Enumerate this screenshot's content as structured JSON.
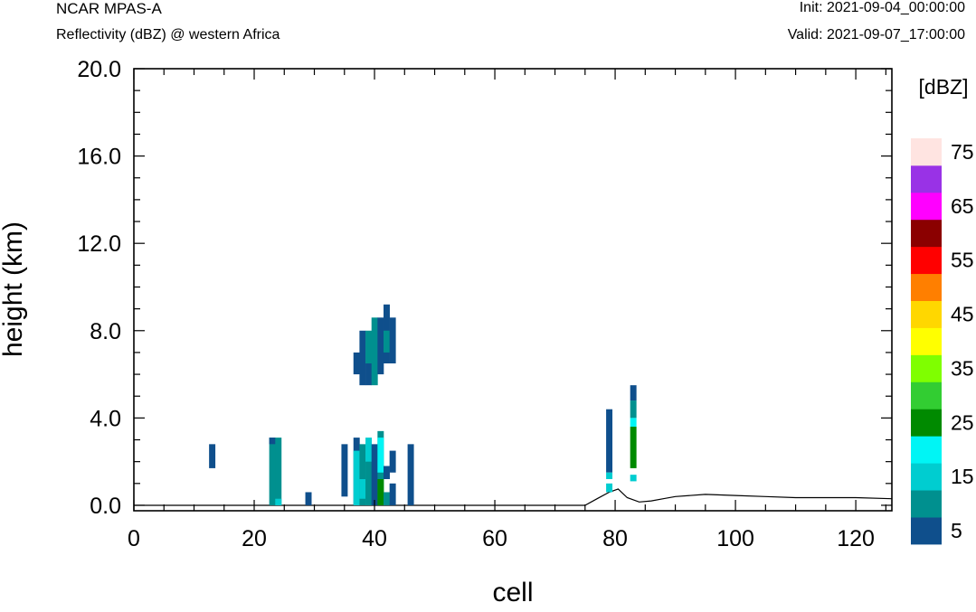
{
  "header": {
    "model": "NCAR MPAS-A",
    "field": "Reflectivity (dBZ) @ western Africa",
    "init": "Init: 2021-09-04_00:00:00",
    "valid": "Valid: 2021-09-07_17:00:00"
  },
  "chart_data": {
    "type": "heatmap",
    "title": "Reflectivity (dBZ) @ western Africa",
    "xlabel": "cell",
    "ylabel": "height (km)",
    "xlim": [
      0,
      126
    ],
    "ylim": [
      -0.25,
      20.0
    ],
    "x_ticks": [
      0,
      20,
      40,
      60,
      80,
      100,
      120
    ],
    "y_ticks": [
      0.0,
      4.0,
      8.0,
      12.0,
      16.0,
      20.0
    ],
    "y_tick_labels": [
      "0.0",
      "4.0",
      "8.0",
      "12.0",
      "16.0",
      "20.0"
    ],
    "colorbar": {
      "unit": "[dBZ]",
      "levels": [
        5,
        10,
        15,
        20,
        25,
        30,
        35,
        40,
        45,
        50,
        55,
        60,
        65,
        70,
        75
      ],
      "labels": [
        "5",
        "15",
        "25",
        "35",
        "45",
        "55",
        "65",
        "75"
      ],
      "colors": [
        "#0f4f8c",
        "#00908f",
        "#00cdd0",
        "#00f5f5",
        "#008a00",
        "#32cd32",
        "#7fff00",
        "#ffff00",
        "#ffd700",
        "#ff7f00",
        "#ff0000",
        "#8b0000",
        "#ff00ff",
        "#9932e6",
        "#ffe4e1"
      ]
    },
    "cells": [
      {
        "x": 13,
        "y0": 1.7,
        "y1": 2.8,
        "dbz": 5
      },
      {
        "x": 23,
        "y0": 0.0,
        "y1": 3.1,
        "dbz": 10
      },
      {
        "x": 23,
        "y0": 2.8,
        "y1": 3.1,
        "dbz": 5
      },
      {
        "x": 24,
        "y0": 0.0,
        "y1": 3.1,
        "dbz": 10
      },
      {
        "x": 24,
        "y0": 0.0,
        "y1": 0.3,
        "dbz": 15
      },
      {
        "x": 29,
        "y0": 0.0,
        "y1": 0.6,
        "dbz": 5
      },
      {
        "x": 35,
        "y0": 0.4,
        "y1": 2.8,
        "dbz": 5
      },
      {
        "x": 37,
        "y0": 0.0,
        "y1": 3.1,
        "dbz": 5
      },
      {
        "x": 37,
        "y0": 0.0,
        "y1": 2.5,
        "dbz": 15
      },
      {
        "x": 38,
        "y0": 0.0,
        "y1": 2.8,
        "dbz": 10
      },
      {
        "x": 38,
        "y0": 0.3,
        "y1": 1.2,
        "dbz": 15
      },
      {
        "x": 39,
        "y0": 0.0,
        "y1": 3.1,
        "dbz": 15
      },
      {
        "x": 39,
        "y0": 0.0,
        "y1": 2.0,
        "dbz": 10
      },
      {
        "x": 40,
        "y0": 0.0,
        "y1": 2.8,
        "dbz": 5
      },
      {
        "x": 41,
        "y0": 0.0,
        "y1": 3.4,
        "dbz": 10
      },
      {
        "x": 41,
        "y0": 1.5,
        "y1": 3.1,
        "dbz": 20
      },
      {
        "x": 41,
        "y0": 0.0,
        "y1": 1.2,
        "dbz": 25
      },
      {
        "x": 42,
        "y0": 1.2,
        "y1": 1.8,
        "dbz": 5
      },
      {
        "x": 42,
        "y0": 0.0,
        "y1": 0.6,
        "dbz": 10
      },
      {
        "x": 43,
        "y0": 0.0,
        "y1": 1.0,
        "dbz": 5
      },
      {
        "x": 43,
        "y0": 1.5,
        "y1": 2.5,
        "dbz": 5
      },
      {
        "x": 46,
        "y0": 0.0,
        "y1": 2.8,
        "dbz": 5
      },
      {
        "x": 37,
        "y0": 6.0,
        "y1": 7.0,
        "dbz": 5
      },
      {
        "x": 38,
        "y0": 5.5,
        "y1": 8.0,
        "dbz": 5
      },
      {
        "x": 39,
        "y0": 6.5,
        "y1": 8.0,
        "dbz": 10
      },
      {
        "x": 39,
        "y0": 5.5,
        "y1": 6.5,
        "dbz": 5
      },
      {
        "x": 40,
        "y0": 5.5,
        "y1": 8.6,
        "dbz": 10
      },
      {
        "x": 41,
        "y0": 6.5,
        "y1": 8.0,
        "dbz": 10
      },
      {
        "x": 41,
        "y0": 6.0,
        "y1": 8.6,
        "dbz": 5
      },
      {
        "x": 42,
        "y0": 6.5,
        "y1": 9.2,
        "dbz": 5
      },
      {
        "x": 42,
        "y0": 7.0,
        "y1": 8.0,
        "dbz": 10
      },
      {
        "x": 43,
        "y0": 6.5,
        "y1": 8.6,
        "dbz": 5
      },
      {
        "x": 79,
        "y0": 1.5,
        "y1": 4.4,
        "dbz": 5
      },
      {
        "x": 79,
        "y0": 1.2,
        "y1": 1.5,
        "dbz": 15
      },
      {
        "x": 79,
        "y0": 0.6,
        "y1": 1.0,
        "dbz": 15
      },
      {
        "x": 83,
        "y0": 4.8,
        "y1": 5.5,
        "dbz": 5
      },
      {
        "x": 83,
        "y0": 4.0,
        "y1": 4.8,
        "dbz": 10
      },
      {
        "x": 83,
        "y0": 3.6,
        "y1": 4.0,
        "dbz": 20
      },
      {
        "x": 83,
        "y0": 1.7,
        "y1": 3.6,
        "dbz": 25
      },
      {
        "x": 83,
        "y0": 1.1,
        "y1": 1.4,
        "dbz": 15
      }
    ],
    "terrain": [
      [
        0,
        0.0
      ],
      [
        75,
        0.0
      ],
      [
        77,
        0.3
      ],
      [
        79,
        0.6
      ],
      [
        80.5,
        0.75
      ],
      [
        82,
        0.35
      ],
      [
        84,
        0.15
      ],
      [
        86,
        0.2
      ],
      [
        88,
        0.3
      ],
      [
        90,
        0.4
      ],
      [
        95,
        0.5
      ],
      [
        100,
        0.45
      ],
      [
        105,
        0.4
      ],
      [
        110,
        0.35
      ],
      [
        115,
        0.35
      ],
      [
        120,
        0.35
      ],
      [
        126,
        0.3
      ]
    ]
  }
}
